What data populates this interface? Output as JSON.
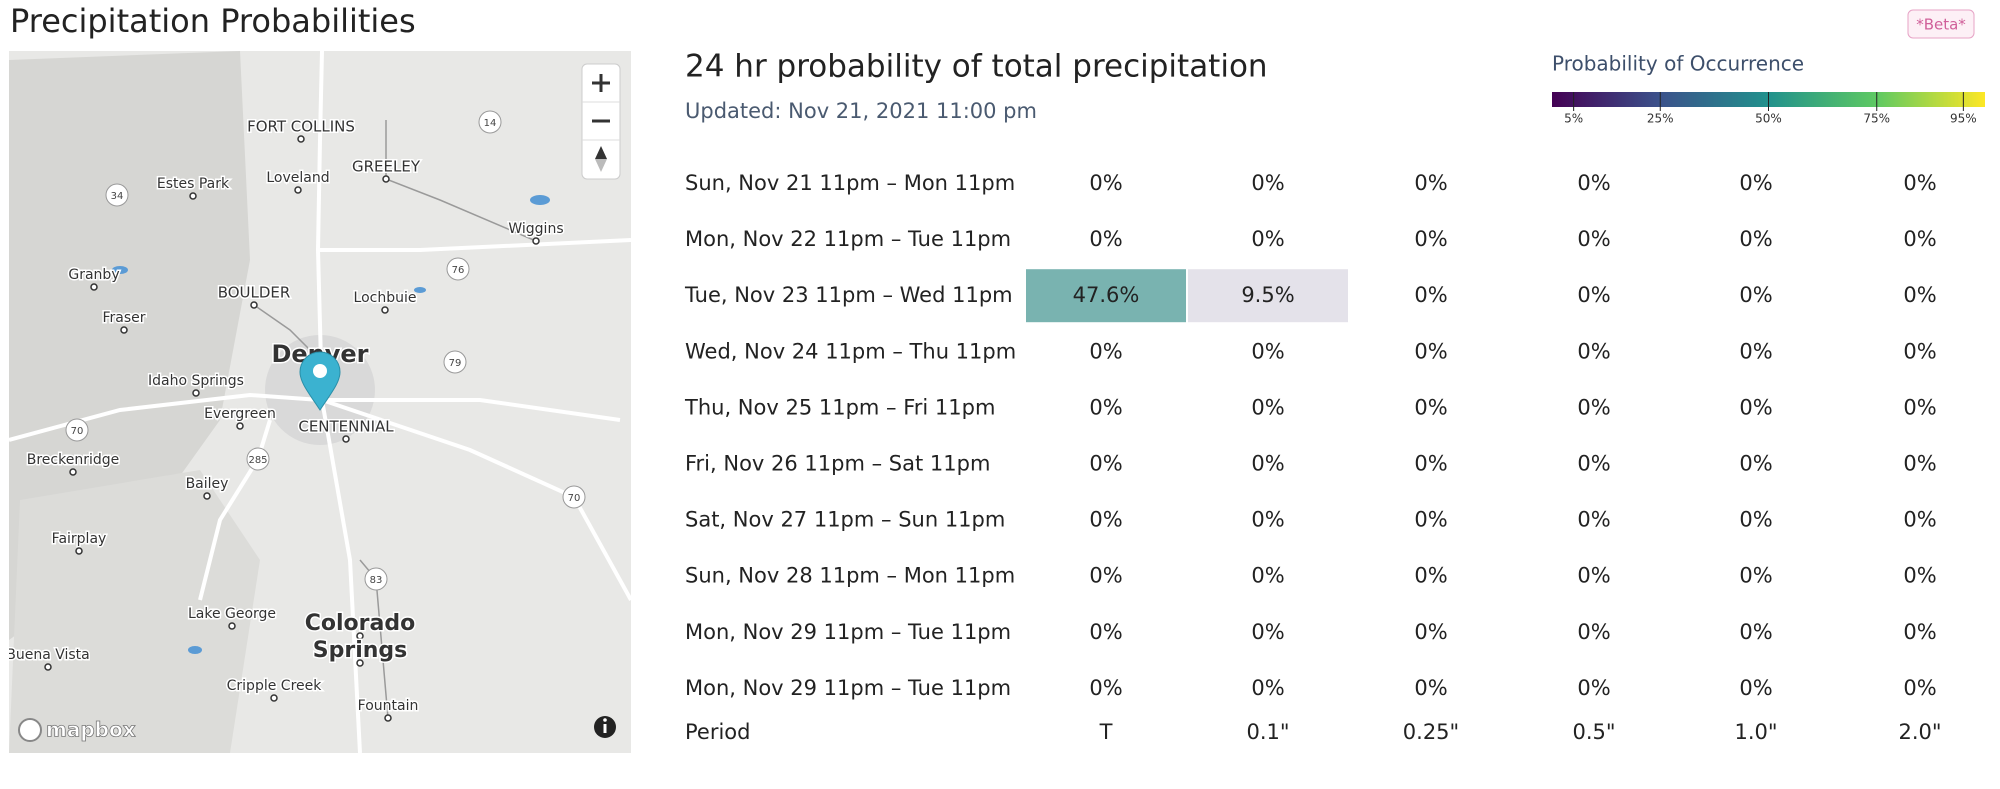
{
  "header": {
    "title": "Precipitation Probabilities",
    "badge": "*Beta*"
  },
  "map": {
    "labels": [
      "FORT COLLINS",
      "GREELEY",
      "Loveland",
      "Estes Park",
      "Granby",
      "BOULDER",
      "Lochbuie",
      "Fraser",
      "Denver",
      "Idaho Springs",
      "Evergreen",
      "CENTENNIAL",
      "Breckenridge",
      "Bailey",
      "Fairplay",
      "Wiggins",
      "Lake George",
      "Colorado",
      "Springs",
      "Cripple Creek",
      "Fountain",
      "Buena Vista"
    ],
    "shields": [
      "14",
      "34",
      "76",
      "79",
      "70",
      "285",
      "70",
      "83"
    ],
    "attribution": "mapbox"
  },
  "panel": {
    "title": "24 hr probability of total precipitation",
    "updated": "Updated: Nov 21, 2021 11:00 pm"
  },
  "legend": {
    "title": "Probability of Occurrence",
    "range": [
      0,
      100
    ],
    "ticks": [
      {
        "value": 5,
        "label": "5%"
      },
      {
        "value": 25,
        "label": "25%"
      },
      {
        "value": 50,
        "label": "50%"
      },
      {
        "value": 75,
        "label": "75%"
      },
      {
        "value": 95,
        "label": "95%"
      }
    ],
    "colors": [
      "#440154",
      "#3b528b",
      "#21918c",
      "#5ec962",
      "#fde725"
    ]
  },
  "table": {
    "rows": [
      {
        "period": "Sun, Nov 21 11pm – Mon 11pm",
        "cells": [
          "0%",
          "0%",
          "0%",
          "0%",
          "0%",
          "0%"
        ]
      },
      {
        "period": "Mon, Nov 22 11pm – Tue 11pm",
        "cells": [
          "0%",
          "0%",
          "0%",
          "0%",
          "0%",
          "0%"
        ]
      },
      {
        "period": "Tue, Nov 23 11pm – Wed 11pm",
        "cells": [
          "47.6%",
          "9.5%",
          "0%",
          "0%",
          "0%",
          "0%"
        ],
        "cell_colors": [
          "#79b3b0",
          "#e4e2ea",
          null,
          null,
          null,
          null
        ]
      },
      {
        "period": "Wed, Nov 24 11pm – Thu 11pm",
        "cells": [
          "0%",
          "0%",
          "0%",
          "0%",
          "0%",
          "0%"
        ]
      },
      {
        "period": "Thu, Nov 25 11pm – Fri 11pm",
        "cells": [
          "0%",
          "0%",
          "0%",
          "0%",
          "0%",
          "0%"
        ]
      },
      {
        "period": "Fri, Nov 26 11pm – Sat 11pm",
        "cells": [
          "0%",
          "0%",
          "0%",
          "0%",
          "0%",
          "0%"
        ]
      },
      {
        "period": "Sat, Nov 27 11pm – Sun 11pm",
        "cells": [
          "0%",
          "0%",
          "0%",
          "0%",
          "0%",
          "0%"
        ]
      },
      {
        "period": "Sun, Nov 28 11pm – Mon 11pm",
        "cells": [
          "0%",
          "0%",
          "0%",
          "0%",
          "0%",
          "0%"
        ]
      },
      {
        "period": "Mon, Nov 29 11pm – Tue 11pm",
        "cells": [
          "0%",
          "0%",
          "0%",
          "0%",
          "0%",
          "0%"
        ]
      },
      {
        "period": "Mon, Nov 29 11pm – Tue 11pm",
        "cells": [
          "0%",
          "0%",
          "0%",
          "0%",
          "0%",
          "0%"
        ]
      }
    ],
    "footer": {
      "label": "Period",
      "thresholds": [
        "T",
        "0.1\"",
        "0.25\"",
        "0.5\"",
        "1.0\"",
        "2.0\""
      ]
    }
  }
}
